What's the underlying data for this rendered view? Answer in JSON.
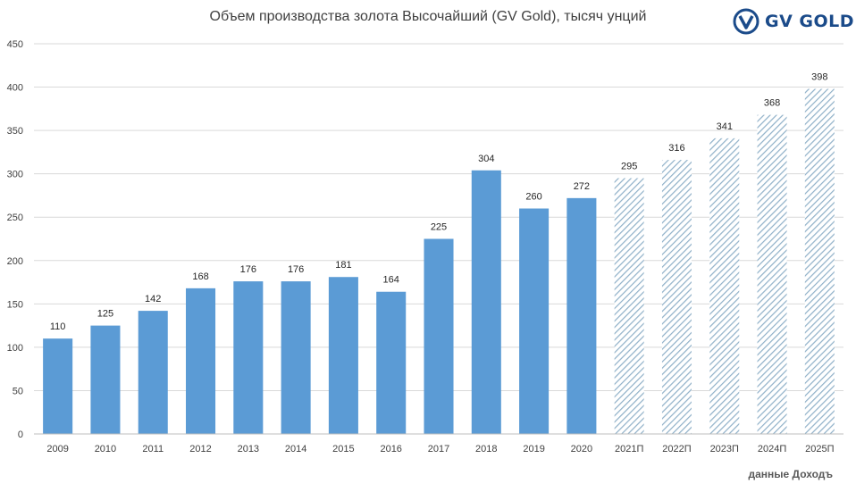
{
  "chart_data": {
    "type": "bar",
    "title": "Объем производства золота Высочайший (GV Gold), тысяч унций",
    "categories": [
      "2009",
      "2010",
      "2011",
      "2012",
      "2013",
      "2014",
      "2015",
      "2016",
      "2017",
      "2018",
      "2019",
      "2020",
      "2021П",
      "2022П",
      "2023П",
      "2024П",
      "2025П"
    ],
    "values": [
      110,
      125,
      142,
      168,
      176,
      176,
      181,
      164,
      225,
      304,
      260,
      272,
      295,
      316,
      341,
      368,
      398
    ],
    "forecast": [
      false,
      false,
      false,
      false,
      false,
      false,
      false,
      false,
      false,
      false,
      false,
      false,
      true,
      true,
      true,
      true,
      true
    ],
    "yticks": [
      "0",
      "50",
      "100",
      "150",
      "200",
      "250",
      "300",
      "350",
      "400",
      "450"
    ],
    "ylim": [
      0,
      450
    ],
    "grid": true,
    "xlabel": "",
    "ylabel": "",
    "colors": {
      "actual": "#5b9bd5",
      "forecast": "#8fb0c8",
      "grid": "#d9d9d9"
    }
  },
  "logo": {
    "text": "GV GOLD",
    "icon": "gv-gold-logo-icon"
  },
  "source_note": "данные Доходъ"
}
